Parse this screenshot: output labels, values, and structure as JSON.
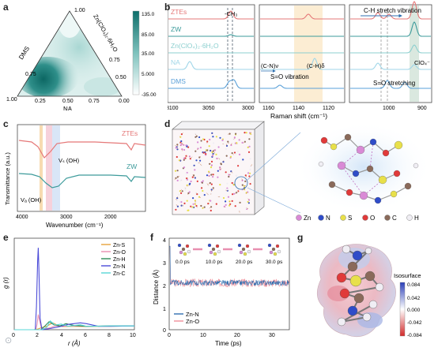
{
  "panels": {
    "a": {
      "letter": "a",
      "corner_top": "1.00",
      "corner_left": "1.00",
      "corner_right": "0.00",
      "axis_left": "DMS",
      "axis_right": "Zn(ClO₄)₂·6H₂O",
      "axis_bottom": "NA",
      "left_ticks": [
        "0.75",
        "0.50",
        "0.25"
      ],
      "right_ticks": [
        "0.75",
        "0.50",
        "0.25"
      ],
      "bottom_ticks": [
        "0.25",
        "0.50",
        "0.75"
      ],
      "colorbar_ticks": [
        "135.0",
        "85.00",
        "35.00",
        "5.000",
        "-35.00"
      ],
      "colors": {
        "low": "#ffffff",
        "mid": "#7ec2bd",
        "high": "#0d6e6a"
      }
    },
    "b": {
      "letter": "b",
      "series_labels": [
        "ZTEs",
        "ZW",
        "Zn(ClO₄)₂·6H₂O",
        "NA",
        "DMS"
      ],
      "series_colors": [
        "#e57878",
        "#3d9b9b",
        "#8ccfcf",
        "#9fd6e8",
        "#5aa0d8"
      ],
      "left_ticks": [
        "3100",
        "3050",
        "3000"
      ],
      "mid_ticks": [
        "1160",
        "1140",
        "1120"
      ],
      "right_ticks": [
        "1000",
        "900"
      ],
      "xlabel": "Raman shift (cm⁻¹)",
      "annot_ch3": "-CH₃",
      "annot_ch_stretch": "C-H stretch vibration",
      "annot_cn": "(C-N)ν",
      "annot_ch_delta": "(C-H)δ",
      "annot_so_vib": "S=O vibration",
      "annot_so_stretch": "S=O stretching",
      "annot_clo4": "ClO₄⁻"
    },
    "c": {
      "letter": "c",
      "ylabel": "Transmittance (a.u.)",
      "xlabel": "Wavenumber (cm⁻¹)",
      "xticks": [
        "4000",
        "3000",
        "2000"
      ],
      "label_ztes": "ZTEs",
      "label_zw": "ZW",
      "annot_vs": "Vₛ (OH)",
      "annot_va": "Vₐ (OH)"
    },
    "d": {
      "letter": "d",
      "legend": [
        {
          "label": "Zn",
          "color": "#d98ad6"
        },
        {
          "label": "N",
          "color": "#2f4cc8"
        },
        {
          "label": "S",
          "color": "#e8e04a"
        },
        {
          "label": "O",
          "color": "#e03a3a"
        },
        {
          "label": "C",
          "color": "#8a6a5a"
        },
        {
          "label": "H",
          "color": "#f0eef4"
        }
      ]
    },
    "e": {
      "letter": "e",
      "ylabel": "g (r)",
      "xlabel": "r (Å)",
      "xticks": [
        "0",
        "2",
        "4",
        "6",
        "8",
        "10"
      ]
    },
    "f": {
      "letter": "f",
      "ylabel": "Distance (Å)",
      "xlabel": "Time (ps)",
      "xticks": [
        "0",
        "10",
        "20",
        "30"
      ],
      "yticks": [
        "0",
        "1",
        "2",
        "3",
        "4"
      ],
      "snapshots": [
        "0.0 ps",
        "10.0 ps",
        "20.0 ps",
        "30.0 ps"
      ]
    },
    "g": {
      "letter": "g",
      "colorbar_title": "Isosurface",
      "colorbar_ticks": [
        "0.084",
        "0.042",
        "0.000",
        "-0.042",
        "-0.084"
      ]
    }
  },
  "chart_data": [
    {
      "panel": "e",
      "type": "line",
      "xlabel": "r (Å)",
      "ylabel": "g (r)",
      "xlim": [
        0,
        10
      ],
      "ylim": [
        0,
        24
      ],
      "series": [
        {
          "name": "Zn-S",
          "color": "#e6a23c",
          "x": [
            0,
            1.6,
            2.0,
            2.3,
            2.7,
            3.2,
            3.6,
            4.0,
            5.0,
            6.0,
            7.0,
            8.0,
            10.0
          ],
          "y": [
            0,
            0,
            0.2,
            0.6,
            0.9,
            1.8,
            1.2,
            0.8,
            0.9,
            0.8,
            0.9,
            0.9,
            1.0
          ]
        },
        {
          "name": "Zn-O",
          "color": "#e88fb0",
          "x": [
            0,
            1.8,
            1.9,
            2.0,
            2.1,
            2.25,
            2.5,
            3.0,
            3.4,
            4.0,
            5.0,
            6.0,
            8.0,
            10.0
          ],
          "y": [
            0,
            0,
            1.5,
            4.0,
            2.5,
            0.6,
            0.2,
            0.5,
            1.0,
            0.9,
            1.0,
            0.9,
            1.0,
            1.0
          ]
        },
        {
          "name": "Zn-H",
          "color": "#2e8b57",
          "x": [
            0,
            2.2,
            2.5,
            2.9,
            3.3,
            3.8,
            4.3,
            5.0,
            6.0,
            8.0,
            10.0
          ],
          "y": [
            0,
            0,
            0.8,
            2.1,
            1.3,
            1.0,
            1.6,
            1.1,
            0.9,
            1.0,
            1.0
          ]
        },
        {
          "name": "Zn-N",
          "color": "#4b4bd8",
          "x": [
            0,
            1.75,
            1.85,
            1.95,
            2.0,
            2.05,
            2.15,
            2.3,
            3.0,
            3.8,
            4.5,
            5.5,
            6.0,
            7.0,
            8.0,
            10.0
          ],
          "y": [
            0,
            0,
            6.0,
            18.0,
            21.5,
            16.0,
            3.0,
            0,
            0.3,
            0.8,
            1.4,
            1.8,
            1.6,
            0.9,
            0.9,
            1.0
          ]
        },
        {
          "name": "Zn-C",
          "color": "#57d7d7",
          "x": [
            0,
            2.3,
            2.7,
            3.0,
            3.4,
            3.9,
            4.5,
            5.5,
            6.0,
            8.0,
            10.0
          ],
          "y": [
            0,
            0,
            0.6,
            2.3,
            1.2,
            1.5,
            0.9,
            1.3,
            0.9,
            1.0,
            1.0
          ]
        }
      ]
    },
    {
      "panel": "f",
      "type": "line",
      "xlabel": "Time (ps)",
      "ylabel": "Distance (Å)",
      "xlim": [
        0,
        35
      ],
      "ylim": [
        0,
        4
      ],
      "series": [
        {
          "name": "Zn-N",
          "color": "#2f6fb0",
          "mean": 2.05,
          "spread": 0.12
        },
        {
          "name": "Zn-O",
          "color": "#f08f9a",
          "mean": 2.05,
          "spread": 0.18
        }
      ]
    }
  ]
}
